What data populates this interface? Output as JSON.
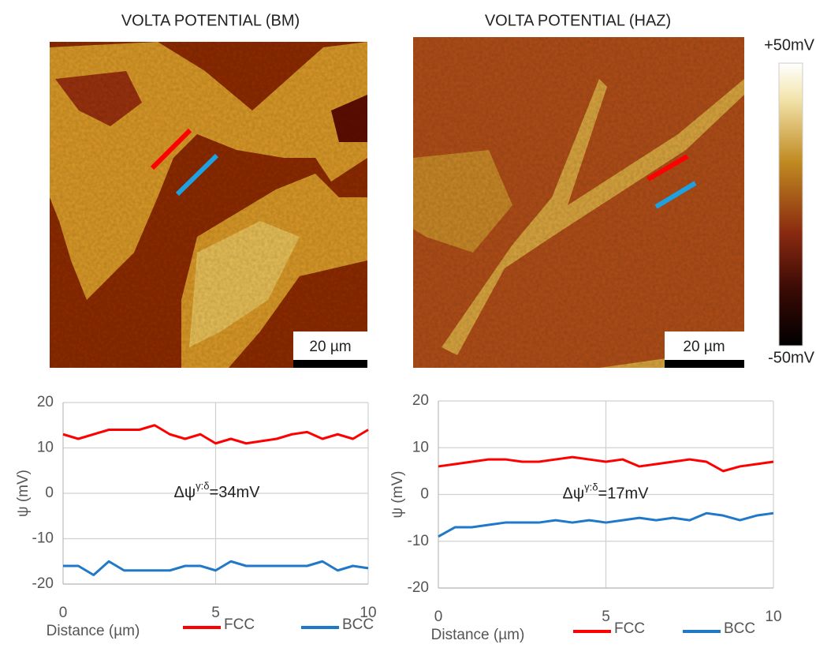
{
  "panels": [
    {
      "title": "VOLTA POTENTIAL (BM)",
      "scale_bar": "20 µm"
    },
    {
      "title": "VOLTA POTENTIAL (HAZ)",
      "scale_bar": "20 µm"
    }
  ],
  "colorbar": {
    "max_label": "+50mV",
    "min_label": "-50mV"
  },
  "chart_data": [
    {
      "type": "line",
      "x_label": "Distance (µm)",
      "y_label": "ψ (mV)",
      "annotation": {
        "base": "Δψ",
        "sup": "γ:δ",
        "rest": "=34mV"
      },
      "x": [
        0,
        0.5,
        1,
        1.5,
        2,
        2.5,
        3,
        3.5,
        4,
        4.5,
        5,
        5.5,
        6,
        6.5,
        7,
        7.5,
        8,
        8.5,
        9,
        9.5,
        10
      ],
      "xlim": [
        0,
        10
      ],
      "xticks": [
        0,
        5,
        10
      ],
      "ylim": [
        -20,
        20
      ],
      "yticks": [
        -20,
        -10,
        0,
        10,
        20
      ],
      "grid": true,
      "series": [
        {
          "name": "FCC",
          "color": "#ff0000",
          "values": [
            13,
            12,
            13,
            14,
            14,
            14,
            15,
            13,
            12,
            13,
            11,
            12,
            11,
            11.5,
            12,
            13,
            13.5,
            12,
            13,
            12,
            14
          ]
        },
        {
          "name": "BCC",
          "color": "#1f78c8",
          "values": [
            -16,
            -16,
            -18,
            -15,
            -17,
            -17,
            -17,
            -17,
            -16,
            -16,
            -17,
            -15,
            -16,
            -16,
            -16,
            -16,
            -16,
            -15,
            -17,
            -16,
            -16.5
          ]
        }
      ]
    },
    {
      "type": "line",
      "x_label": "Distance (µm)",
      "y_label": "ψ (mV)",
      "annotation": {
        "base": "Δψ",
        "sup": "γ:δ",
        "rest": "=17mV"
      },
      "x": [
        0,
        0.5,
        1,
        1.5,
        2,
        2.5,
        3,
        3.5,
        4,
        4.5,
        5,
        5.5,
        6,
        6.5,
        7,
        7.5,
        8,
        8.5,
        9,
        9.5,
        10
      ],
      "xlim": [
        0,
        10
      ],
      "xticks": [
        0,
        5,
        10
      ],
      "ylim": [
        -20,
        20
      ],
      "yticks": [
        -20,
        -10,
        0,
        10,
        20
      ],
      "grid": true,
      "series": [
        {
          "name": "FCC",
          "color": "#ff0000",
          "values": [
            6,
            6.5,
            7,
            7.5,
            7.5,
            7,
            7,
            7.5,
            8,
            7.5,
            7,
            7.5,
            6,
            6.5,
            7,
            7.5,
            7,
            5,
            6,
            6.5,
            7
          ]
        },
        {
          "name": "BCC",
          "color": "#1f78c8",
          "values": [
            -9,
            -7,
            -7,
            -6.5,
            -6,
            -6,
            -6,
            -5.5,
            -6,
            -5.5,
            -6,
            -5.5,
            -5,
            -5.5,
            -5,
            -5.5,
            -4,
            -4.5,
            -5.5,
            -4.5,
            -4
          ]
        }
      ]
    }
  ]
}
